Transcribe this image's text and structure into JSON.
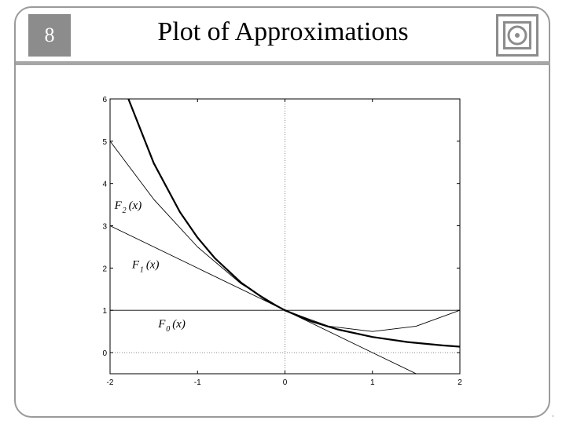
{
  "slide": {
    "number": "8",
    "title": "Plot of Approximations"
  },
  "icons": {
    "logo": "nested-square-logo-icon"
  },
  "chart_data": {
    "type": "line",
    "title": "",
    "xlabel": "",
    "ylabel": "",
    "xlim": [
      -2,
      2
    ],
    "ylim": [
      -0.5,
      6
    ],
    "x_ticks": [
      -2,
      -1,
      0,
      1,
      2
    ],
    "y_ticks": [
      0,
      1,
      2,
      3,
      4,
      5,
      6
    ],
    "grid": false,
    "reference_lines": {
      "vertical_x": 0,
      "horizontal_y": 0,
      "style": "dotted"
    },
    "series": [
      {
        "label_main": "F",
        "label_sub": "0",
        "label_arg": "(x)",
        "label_at": [
          -1.45,
          0.6
        ],
        "bold": false,
        "x": [
          -2,
          2
        ],
        "y": [
          1,
          1
        ]
      },
      {
        "label_main": "F",
        "label_sub": "1",
        "label_arg": "(x)",
        "label_at": [
          -1.75,
          2.0
        ],
        "bold": false,
        "x": [
          -2,
          -1,
          0,
          1,
          1.5
        ],
        "y": [
          3,
          2,
          1,
          0,
          -0.5
        ]
      },
      {
        "label_main": "F",
        "label_sub": "2",
        "label_arg": "(x)",
        "label_at": [
          -1.95,
          3.4
        ],
        "bold": false,
        "x": [
          -2,
          -1.5,
          -1,
          -0.5,
          0,
          0.5,
          1,
          1.5,
          2
        ],
        "y": [
          5,
          3.625,
          2.5,
          1.625,
          1,
          0.625,
          0.5,
          0.625,
          1
        ]
      },
      {
        "bold": true,
        "x": [
          -1.8,
          -1.5,
          -1.2,
          -1,
          -0.8,
          -0.5,
          -0.2,
          0,
          0.3,
          0.6,
          1,
          1.4,
          1.8,
          2
        ],
        "y": [
          6.05,
          4.48,
          3.32,
          2.72,
          2.23,
          1.65,
          1.22,
          1,
          0.74,
          0.55,
          0.37,
          0.25,
          0.17,
          0.14
        ]
      }
    ]
  }
}
